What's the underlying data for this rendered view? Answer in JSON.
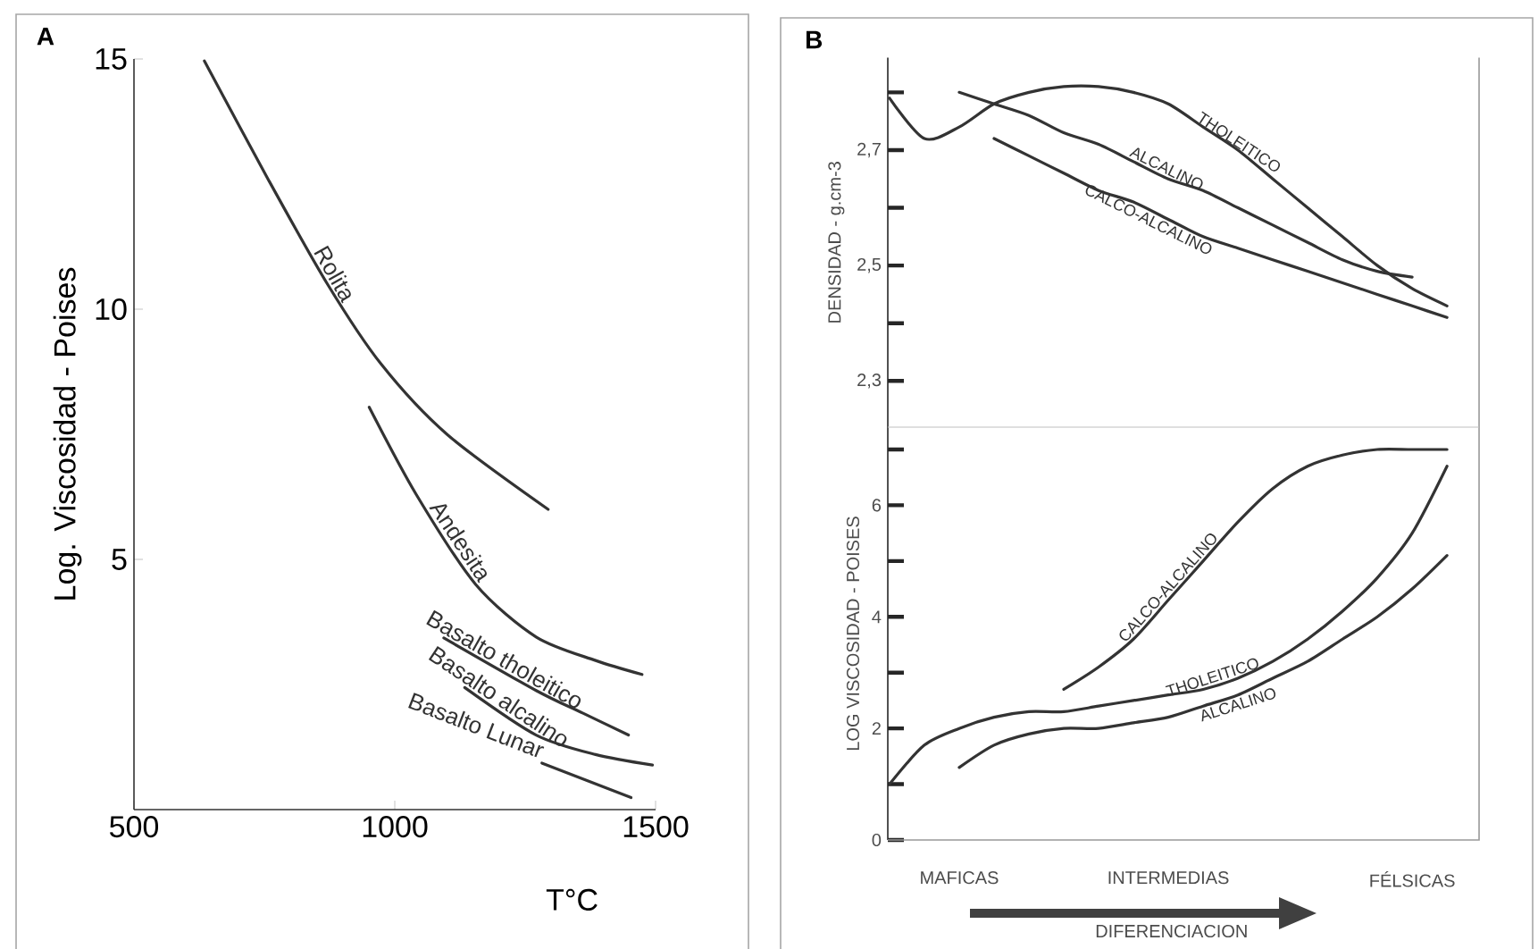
{
  "chart_data": [
    {
      "type": "line",
      "title": "A",
      "xlabel": "T°C",
      "ylabel": "Log. Viscosidad - Poises",
      "xlim": [
        500,
        1500
      ],
      "ylim": [
        0,
        15
      ],
      "xticks": [
        500,
        1000,
        1500
      ],
      "yticks": [
        5,
        10,
        15
      ],
      "series": [
        {
          "name": "Rolita",
          "color": "#333333",
          "x": [
            635,
            757,
            871,
            974,
            1100,
            1294
          ],
          "values": [
            14.96,
            12.6,
            10.5,
            8.9,
            7.5,
            6.0
          ]
        },
        {
          "name": "Andesita",
          "color": "#333333",
          "x": [
            951,
            1041,
            1155,
            1271,
            1385,
            1474
          ],
          "values": [
            8.04,
            6.3,
            4.5,
            3.45,
            2.98,
            2.7
          ]
        },
        {
          "name": "Basalto tholeitico",
          "color": "#333333",
          "x": [
            1094,
            1271,
            1360,
            1448
          ],
          "values": [
            3.43,
            2.38,
            1.93,
            1.49
          ]
        },
        {
          "name": "Basalto alcalino",
          "color": "#333333",
          "x": [
            1134,
            1271,
            1385,
            1494
          ],
          "values": [
            2.44,
            1.49,
            1.1,
            0.89
          ]
        },
        {
          "name": "Basalto Lunar",
          "color": "#333333",
          "x": [
            1282,
            1453
          ],
          "values": [
            0.93,
            0.24
          ]
        }
      ]
    },
    {
      "type": "line",
      "title": "B",
      "ylabel": "DENSIDAD - g.cm-3",
      "categories": [
        null,
        null,
        null,
        null,
        null,
        null,
        null,
        null,
        null,
        null,
        null,
        null,
        null,
        null,
        null,
        null,
        null
      ],
      "ylim": [
        2.22,
        2.86
      ],
      "yticks": [
        {
          "value": 2.3,
          "label": "2,3"
        },
        {
          "value": 2.4,
          "label": null
        },
        {
          "value": 2.5,
          "label": "2,5"
        },
        {
          "value": 2.6,
          "label": null
        },
        {
          "value": 2.7,
          "label": "2,7"
        },
        {
          "value": 2.8,
          "label": null
        }
      ],
      "series": [
        {
          "name": "THOLEITICO",
          "color": "#333333",
          "values": [
            2.79,
            2.72,
            2.74,
            2.78,
            2.8,
            2.81,
            2.81,
            2.8,
            2.78,
            2.74,
            2.7,
            2.65,
            2.6,
            2.55,
            2.5,
            2.46,
            2.43
          ]
        },
        {
          "name": "ALCALINO",
          "color": "#333333",
          "values": [
            null,
            null,
            2.8,
            2.78,
            2.76,
            2.73,
            2.71,
            2.68,
            2.65,
            2.63,
            2.6,
            2.57,
            2.54,
            2.51,
            2.49,
            2.48,
            null
          ]
        },
        {
          "name": "CALCO-ALCALINO",
          "color": "#333333",
          "values": [
            null,
            null,
            null,
            2.72,
            2.69,
            2.66,
            2.63,
            2.61,
            2.58,
            2.55,
            2.53,
            2.51,
            2.49,
            2.47,
            2.45,
            2.43,
            2.41
          ]
        }
      ]
    },
    {
      "type": "line",
      "xlabel": "DIFERENCIACION",
      "ylabel": "LOG VISCOSIDAD - POISES",
      "categories": [
        null,
        null,
        "MAFICAS",
        null,
        null,
        null,
        null,
        null,
        "INTERMEDIAS",
        null,
        null,
        null,
        null,
        null,
        null,
        "FÉLSICAS",
        null
      ],
      "ylim": [
        0,
        7.4
      ],
      "yticks": [
        0,
        {
          "value": 1,
          "label": null
        },
        2,
        {
          "value": 3,
          "label": null
        },
        4,
        {
          "value": 5,
          "label": null
        },
        6,
        {
          "value": 7,
          "label": null
        }
      ],
      "series": [
        {
          "name": "CALCO-ALCALINO",
          "color": "#333333",
          "values": [
            null,
            null,
            null,
            null,
            null,
            2.7,
            3.1,
            3.6,
            4.3,
            5.0,
            5.7,
            6.3,
            6.7,
            6.9,
            7.0,
            7.0,
            7.0
          ]
        },
        {
          "name": "THOLEITICO",
          "color": "#333333",
          "values": [
            1.0,
            1.7,
            2.0,
            2.2,
            2.3,
            2.3,
            2.4,
            2.5,
            2.6,
            2.7,
            2.9,
            3.2,
            3.6,
            4.1,
            4.7,
            5.5,
            6.7
          ]
        },
        {
          "name": "ALCALINO",
          "color": "#333333",
          "values": [
            null,
            null,
            1.3,
            1.7,
            1.9,
            2.0,
            2.0,
            2.1,
            2.2,
            2.4,
            2.6,
            2.9,
            3.2,
            3.6,
            4.0,
            4.5,
            5.1
          ]
        }
      ]
    }
  ]
}
